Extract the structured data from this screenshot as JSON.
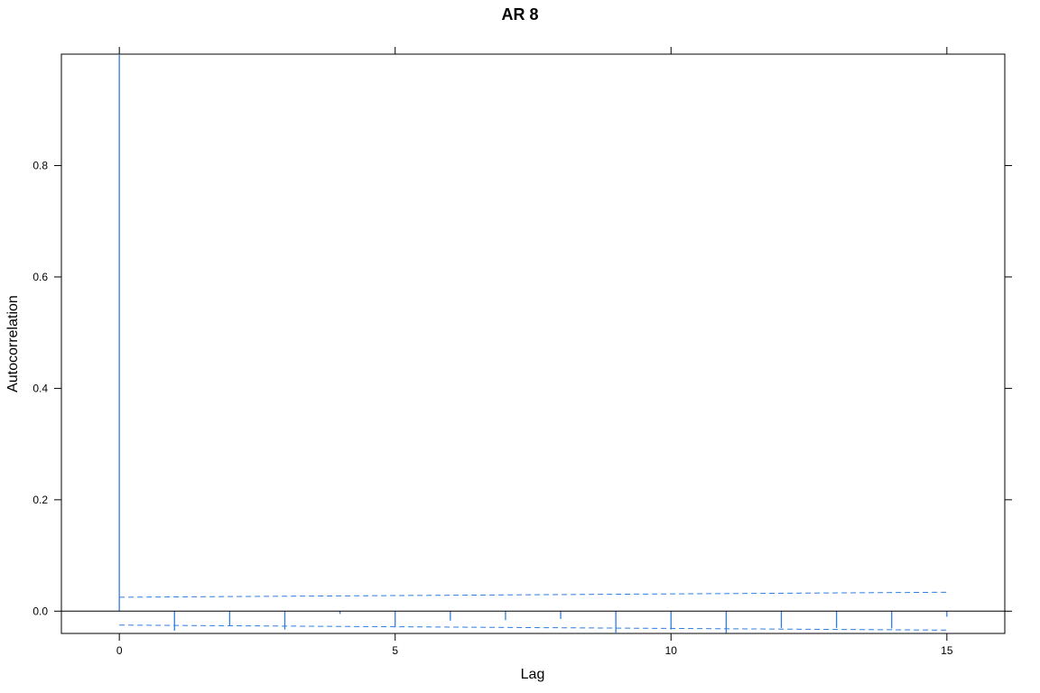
{
  "chart_data": {
    "type": "bar",
    "title": "AR 8",
    "xlabel": "Lag",
    "ylabel": "Autocorrelation",
    "xlim": [
      -1.05,
      16.05
    ],
    "ylim": [
      -0.04,
      1.0
    ],
    "x_ticks": [
      0,
      5,
      10,
      15
    ],
    "x_tick_labels": [
      "0",
      "5",
      "10",
      "15"
    ],
    "y_ticks": [
      0.0,
      0.2,
      0.4,
      0.6,
      0.8
    ],
    "y_tick_labels": [
      "0.0",
      "0.2",
      "0.4",
      "0.6",
      "0.8"
    ],
    "grid": false,
    "zero_line": true,
    "series": [
      {
        "lags": [
          0,
          1,
          2,
          3,
          4,
          5,
          6,
          7,
          8,
          9,
          10,
          11,
          12,
          13,
          14,
          15
        ],
        "values": [
          1.0,
          -0.035,
          -0.027,
          -0.033,
          -0.005,
          -0.029,
          -0.017,
          -0.016,
          -0.014,
          -0.04,
          -0.033,
          -0.039,
          -0.03,
          -0.03,
          -0.031,
          -0.01
        ]
      }
    ],
    "confidence_bands": {
      "upper": {
        "x": [
          0,
          15
        ],
        "y": [
          0.025,
          0.034
        ]
      },
      "lower": {
        "x": [
          0,
          15
        ],
        "y": [
          -0.025,
          -0.034
        ]
      }
    },
    "colors": {
      "bars": "#2f7de1",
      "bands": "#2f7de1",
      "axes": "#000000"
    }
  }
}
